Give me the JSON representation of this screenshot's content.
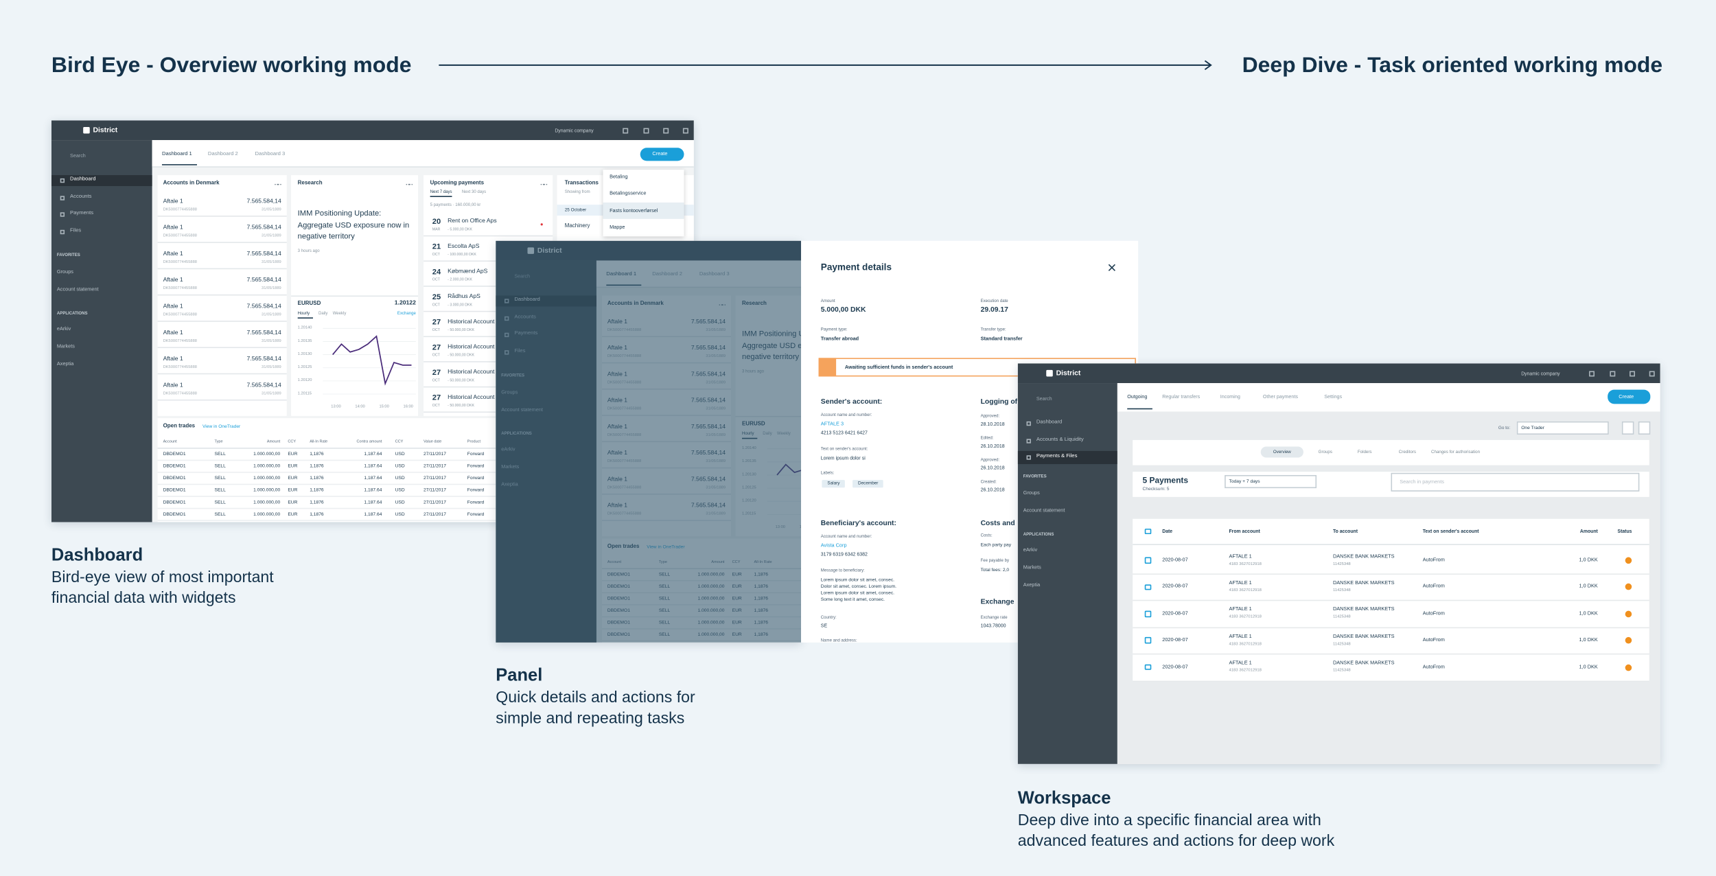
{
  "header": {
    "left_title": "Bird Eye - Overview working mode",
    "right_title": "Deep Dive - Task oriented working mode"
  },
  "sections": [
    {
      "title": "Dashboard",
      "description_lines": [
        "Bird-eye view of most important",
        "financial data with widgets"
      ]
    },
    {
      "title": "Panel",
      "description_lines": [
        "Quick details and actions for",
        "simple and repeating tasks"
      ]
    },
    {
      "title": "Workspace",
      "description_lines": [
        "Deep dive into a specific financial area with",
        "advanced features and actions for deep work"
      ]
    }
  ],
  "dashboard": {
    "brand": "District",
    "company": "Dynamic company",
    "search": "Search",
    "nav": [
      "Dashboard",
      "Accounts",
      "Payments",
      "Files"
    ],
    "favorites_label": "FAVORITES",
    "favorites": [
      "Groups",
      "Account statement"
    ],
    "applications_label": "APPLICATIONS",
    "applications": [
      "eArkiv",
      "Markets",
      "Axeptia"
    ],
    "tabs": [
      "Dashboard 1",
      "Dashboard 2",
      "Dashboard 3"
    ],
    "create": "Create",
    "create_menu": [
      "Betaling",
      "Betalingsservice",
      "Fasts kontooverførsel",
      "Mappe"
    ],
    "accounts": {
      "title": "Accounts in Denmark",
      "rows": [
        {
          "name": "Aftale 1",
          "number": "DK5000774455888",
          "amount": "7.565.584,14",
          "date": "31/05/1889"
        },
        {
          "name": "Aftale 1",
          "number": "DK5000774455888",
          "amount": "7.565.584,14",
          "date": "31/05/1889"
        },
        {
          "name": "Aftale 1",
          "number": "DK5000774455888",
          "amount": "7.565.584,14",
          "date": "31/05/1889"
        },
        {
          "name": "Aftale 1",
          "number": "DK5000774455888",
          "amount": "7.565.584,14",
          "date": "31/05/1889"
        },
        {
          "name": "Aftale 1",
          "number": "DK5000774455888",
          "amount": "7.565.584,14",
          "date": "31/05/1889"
        },
        {
          "name": "Aftale 1",
          "number": "DK5000774455888",
          "amount": "7.565.584,14",
          "date": "31/05/1889"
        },
        {
          "name": "Aftale 1",
          "number": "DK5000774455888",
          "amount": "7.565.584,14",
          "date": "31/05/1889"
        },
        {
          "name": "Aftale 1",
          "number": "DK5000774455888",
          "amount": "7.565.584,14",
          "date": "31/05/1889"
        }
      ]
    },
    "research": {
      "title": "Research",
      "headline": "IMM Positioning Update: Aggregate USD exposure now in negative territory",
      "time": "3 hours ago",
      "pair": "EURUSD",
      "rate": "1.20122",
      "periods": [
        "Hourly",
        "Daily",
        "Weekly"
      ],
      "link": "Exchange",
      "chart": {
        "type": "line",
        "values": [
          1.2013,
          1.20134,
          1.20131,
          1.20132,
          1.20134,
          1.20137,
          1.20119,
          1.20127,
          1.20126,
          1.20126
        ],
        "color": "#4a2c7a",
        "ylim": [
          1.20115,
          1.2014
        ],
        "yticks": [
          {
            "value": 1.2014,
            "label": "1.20140"
          },
          {
            "value": 1.20135,
            "label": "1.20135"
          },
          {
            "value": 1.2013,
            "label": "1.20130"
          },
          {
            "value": 1.20125,
            "label": "1.20125"
          },
          {
            "value": 1.2012,
            "label": "1.20120"
          },
          {
            "value": 1.20115,
            "label": "1.20115"
          }
        ],
        "x_labels": [
          "13:00",
          "14:00",
          "15:00",
          "16:00"
        ]
      }
    },
    "payments": {
      "title": "Upcoming payments",
      "tabs": [
        "Next 7 days",
        "Next 30 days"
      ],
      "summary": "5 payments · 160.000,00 kr",
      "items": [
        {
          "day": "20",
          "month": "MAR",
          "name": "Rent on Office Aps",
          "amount": "- 5.000,00 DKK"
        },
        {
          "day": "21",
          "month": "OCT",
          "name": "Escolta ApS",
          "amount": "- 100.000,00 DKK"
        },
        {
          "day": "24",
          "month": "OCT",
          "name": "Købmænd ApS",
          "amount": "- 2.000,00 DKK"
        },
        {
          "day": "25",
          "month": "OCT",
          "name": "Rådhus ApS",
          "amount": "- 3.000,00 DKK"
        },
        {
          "day": "27",
          "month": "OCT",
          "name": "Historical Account",
          "amount": "- 50.000,00 DKK"
        },
        {
          "day": "27",
          "month": "OCT",
          "name": "Historical Account",
          "amount": "- 50.000,00 DKK"
        },
        {
          "day": "27",
          "month": "OCT",
          "name": "Historical Account",
          "amount": "- 50.000,00 DKK"
        },
        {
          "day": "27",
          "month": "OCT",
          "name": "Historical Account",
          "amount": "- 50.000,00 DKK"
        }
      ]
    },
    "transactions": {
      "title": "Transactions",
      "subtitle": "Showing from",
      "date": "25 October",
      "item": "Machinery"
    },
    "trades": {
      "title": "Open trades",
      "link": "View in OneTrader",
      "columns": [
        "Account",
        "Type",
        "Amount",
        "CCY",
        "All-In Rate",
        "Contra amount",
        "CCY",
        "Value date",
        "Product"
      ],
      "rows": [
        [
          "DBDEMO1",
          "SELL",
          "1.000.000,00",
          "EUR",
          "1,1876",
          "1,187.64",
          "USD",
          "27/11/2017",
          "Forward"
        ],
        [
          "DBDEMO1",
          "SELL",
          "1.000.000,00",
          "EUR",
          "1,1876",
          "1,187.64",
          "USD",
          "27/11/2017",
          "Forward"
        ],
        [
          "DBDEMO1",
          "SELL",
          "1.000.000,00",
          "EUR",
          "1,1876",
          "1,187.64",
          "USD",
          "27/11/2017",
          "Forward"
        ],
        [
          "DBDEMO1",
          "SELL",
          "1.000.000,00",
          "EUR",
          "1,1876",
          "1,187.64",
          "USD",
          "27/11/2017",
          "Forward"
        ],
        [
          "DBDEMO1",
          "SELL",
          "1.000.000,00",
          "EUR",
          "1,1876",
          "1,187.64",
          "USD",
          "27/11/2017",
          "Forward"
        ],
        [
          "DBDEMO1",
          "SELL",
          "1.000.000,00",
          "EUR",
          "1,1876",
          "1,187.64",
          "USD",
          "27/11/2017",
          "Forward"
        ]
      ]
    }
  },
  "panel": {
    "title": "Payment details",
    "amount_label": "Amount",
    "amount": "5.000,00 DKK",
    "execution_label": "Execution date",
    "execution_date": "29.09.17",
    "payment_type_label": "Payment type:",
    "payment_type": "Transfer abroad",
    "transfer_type_label": "Transfer type:",
    "transfer_type": "Standard transfer",
    "warning": "Awaiting sufficient funds in sender's account",
    "sender": {
      "title": "Sender's account:",
      "account_label": "Account name and number:",
      "account_name": "AFTALE 3",
      "account_number": "4213 5123 6421 6427",
      "text_label": "Text on sender's account:",
      "text": "Lorem ipsum dolor si",
      "labels_label": "Labels:",
      "labels": [
        "Salary",
        "December"
      ]
    },
    "beneficiary": {
      "title": "Beneficiary's account:",
      "account_label": "Account name and number:",
      "account_name": "Avista Corp",
      "account_number": "3179 6319 6342 6382",
      "message_label": "Message to beneficiary:",
      "message_lines": [
        "Lorem ipsum dolor sit amet, consec.",
        "Dolor sit amet, consec. Lorem ipsum.",
        "Lorem ipsum dolor sit amet, consec.",
        "Some long text it amet, consec."
      ],
      "country_label": "Country:",
      "country": "SE",
      "address_label": "Name and address:"
    },
    "logging": {
      "title": "Logging of",
      "entries": [
        {
          "label": "Approved:",
          "date": "28.10.2018"
        },
        {
          "label": "Edited:",
          "date": "26.10.2018"
        },
        {
          "label": "Approved:",
          "date": "26.10.2018"
        },
        {
          "label": "Created:",
          "date": "26.10.2018"
        }
      ]
    },
    "costs": {
      "title": "Costs and",
      "costs_label": "Costs:",
      "costs": "Each party pay",
      "fee_label": "Fee payable by",
      "fee": "Total fees: 2,0"
    },
    "exchange": {
      "title": "Exchange",
      "rate_label": "Exchange rate",
      "rate": "1043.78000"
    }
  },
  "workspace": {
    "brand": "District",
    "company": "Dynamic company",
    "search": "Search",
    "nav": [
      "Dashboard",
      "Accounts & Liquidity",
      "Payments & Files"
    ],
    "favorites_label": "FAVORITES",
    "favorites": [
      "Groups",
      "Account statement"
    ],
    "applications_label": "APPLICATIONS",
    "applications": [
      "eArkiv",
      "Markets",
      "Axeptia"
    ],
    "tabs": [
      "Outgoing",
      "Regular transfers",
      "Incoming",
      "Other payments",
      "Settings"
    ],
    "create": "Create",
    "goto_label": "Go to:",
    "goto_value": "One Trader",
    "views": [
      "Overview",
      "Groups",
      "Folders",
      "Creditors",
      "Changes for authorisation"
    ],
    "count": "5 Payments",
    "checksum": "Checksum: 5",
    "period": "Today + 7 days",
    "search_placeholder": "Search in payments",
    "columns": [
      "Date",
      "From account",
      "To account",
      "Text on sender's account",
      "Amount",
      "Status"
    ],
    "rows": [
      {
        "date": "2020-08-07",
        "from": "AFTALE 1",
        "from_number": "4183 3627012918",
        "to": "DANSKE BANK MARKETS",
        "to_number": "11425348",
        "text": "AutoFrom",
        "amount": "1,0 DKK"
      },
      {
        "date": "2020-08-07",
        "from": "AFTALE 1",
        "from_number": "4183 3627012918",
        "to": "DANSKE BANK MARKETS",
        "to_number": "11425348",
        "text": "AutoFrom",
        "amount": "1,0 DKK"
      },
      {
        "date": "2020-08-07",
        "from": "AFTALE 1",
        "from_number": "4183 3627012918",
        "to": "DANSKE BANK MARKETS",
        "to_number": "11425348",
        "text": "AutoFrom",
        "amount": "1,0 DKK"
      },
      {
        "date": "2020-08-07",
        "from": "AFTALE 1",
        "from_number": "4183 3627012918",
        "to": "DANSKE BANK MARKETS",
        "to_number": "11425348",
        "text": "AutoFrom",
        "amount": "1,0 DKK"
      },
      {
        "date": "2020-08-07",
        "from": "AFTALE 1",
        "from_number": "4183 3627012918",
        "to": "DANSKE BANK MARKETS",
        "to_number": "11425348",
        "text": "AutoFrom",
        "amount": "1,0 DKK"
      }
    ]
  }
}
